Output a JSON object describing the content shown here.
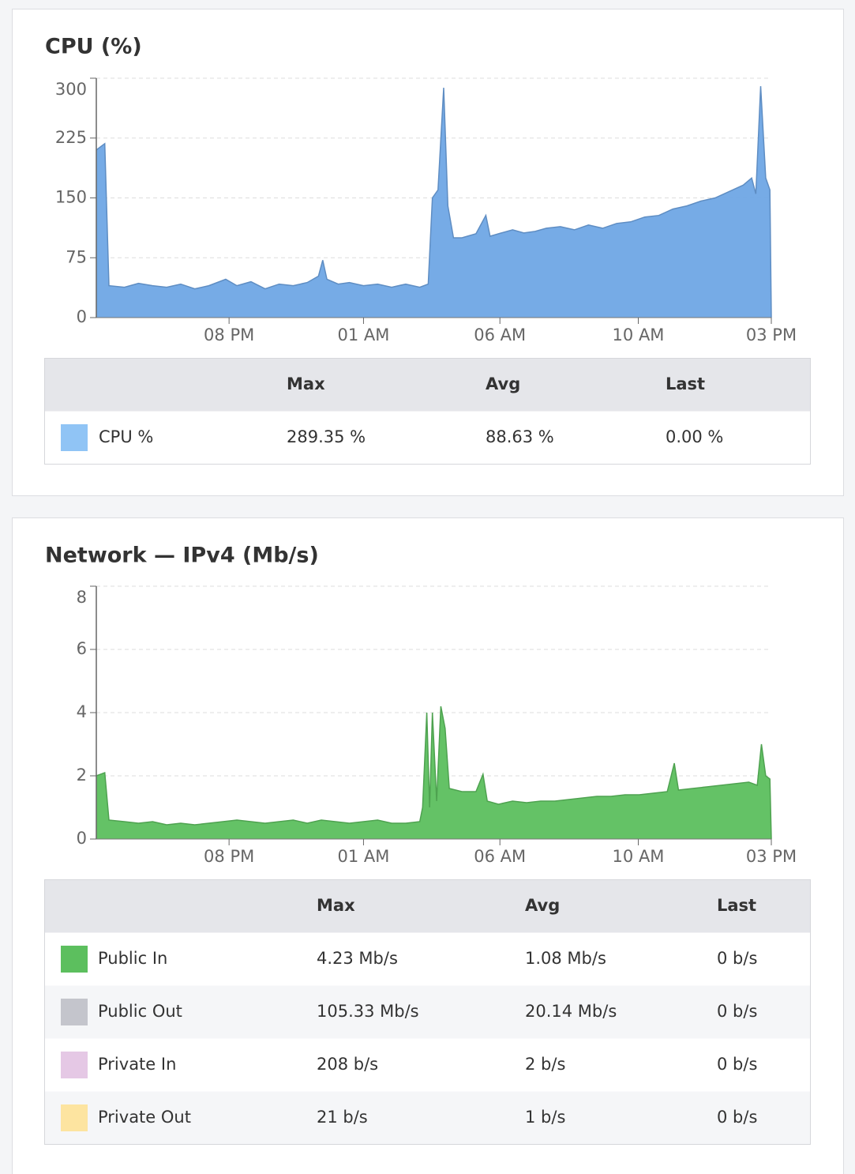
{
  "chart_data": [
    {
      "type": "area",
      "title": "CPU (%)",
      "x": [
        0,
        0.3,
        0.45,
        1,
        1.5,
        2,
        2.5,
        3,
        3.5,
        4,
        4.6,
        5,
        5.5,
        6,
        6.5,
        7,
        7.5,
        7.9,
        8.05,
        8.2,
        8.6,
        9,
        9.5,
        10,
        10.5,
        11,
        11.5,
        11.8,
        11.95,
        12.15,
        12.35,
        12.5,
        12.7,
        13,
        13.5,
        13.85,
        14,
        14.4,
        14.8,
        15.2,
        15.6,
        16,
        16.5,
        17,
        17.5,
        18,
        18.5,
        19,
        19.5,
        20,
        20.5,
        21,
        21.5,
        22,
        22.5,
        23,
        23.3,
        23.45,
        23.62,
        23.8,
        23.95,
        24
      ],
      "series": [
        {
          "color": "#6fa6e5",
          "values": [
            210,
            218,
            40,
            38,
            43,
            40,
            38,
            42,
            36,
            40,
            48,
            40,
            45,
            36,
            42,
            40,
            44,
            52,
            72,
            48,
            42,
            44,
            40,
            42,
            38,
            42,
            38,
            42,
            150,
            160,
            288,
            140,
            100,
            100,
            105,
            128,
            102,
            106,
            110,
            106,
            108,
            112,
            114,
            110,
            116,
            112,
            118,
            120,
            126,
            128,
            136,
            140,
            146,
            150,
            158,
            166,
            175,
            155,
            290,
            175,
            160,
            0
          ]
        }
      ],
      "xlim": [
        0,
        24
      ],
      "xticks": [
        {
          "value": 4.72,
          "label": "08 PM"
        },
        {
          "value": 9.5,
          "label": "01 AM"
        },
        {
          "value": 14.35,
          "label": "06 AM"
        },
        {
          "value": 19.27,
          "label": "10 AM"
        },
        {
          "value": 24,
          "label": "03 PM"
        }
      ],
      "ylim": [
        0,
        300
      ],
      "yticks": [
        0,
        75,
        150,
        225,
        300
      ],
      "grid": true
    },
    {
      "type": "area",
      "title": "Network — IPv4 (Mb/s)",
      "x": [
        0,
        0.3,
        0.45,
        1,
        1.5,
        2,
        2.5,
        3,
        3.5,
        4,
        4.5,
        5,
        5.5,
        6,
        6.5,
        7,
        7.5,
        8,
        8.5,
        9,
        9.5,
        10,
        10.5,
        11,
        11.5,
        11.6,
        11.75,
        11.85,
        11.95,
        12.1,
        12.25,
        12.4,
        12.55,
        13,
        13.5,
        13.75,
        13.9,
        14.3,
        14.8,
        15.3,
        15.8,
        16.3,
        16.8,
        17.3,
        17.8,
        18.3,
        18.8,
        19.3,
        19.8,
        20.3,
        20.55,
        20.7,
        21.2,
        21.7,
        22.2,
        22.7,
        23.2,
        23.5,
        23.65,
        23.8,
        23.95,
        24
      ],
      "series": [
        {
          "color": "#5cbf5e",
          "values": [
            2.0,
            2.1,
            0.6,
            0.55,
            0.5,
            0.55,
            0.45,
            0.5,
            0.45,
            0.5,
            0.55,
            0.6,
            0.55,
            0.5,
            0.55,
            0.6,
            0.5,
            0.6,
            0.55,
            0.5,
            0.55,
            0.6,
            0.5,
            0.5,
            0.55,
            1.0,
            4.0,
            1.0,
            4.0,
            1.2,
            4.2,
            3.5,
            1.6,
            1.5,
            1.5,
            2.05,
            1.2,
            1.1,
            1.2,
            1.15,
            1.2,
            1.2,
            1.25,
            1.3,
            1.35,
            1.35,
            1.4,
            1.4,
            1.45,
            1.5,
            2.4,
            1.55,
            1.6,
            1.65,
            1.7,
            1.75,
            1.8,
            1.7,
            3.0,
            2.0,
            1.9,
            0
          ]
        }
      ],
      "xlim": [
        0,
        24
      ],
      "xticks": [
        {
          "value": 4.72,
          "label": "08 PM"
        },
        {
          "value": 9.5,
          "label": "01 AM"
        },
        {
          "value": 14.35,
          "label": "06 AM"
        },
        {
          "value": 19.27,
          "label": "10 AM"
        },
        {
          "value": 24,
          "label": "03 PM"
        }
      ],
      "ylim": [
        0,
        8
      ],
      "yticks": [
        0,
        2,
        4,
        6,
        8
      ],
      "grid": true
    }
  ],
  "tables": [
    {
      "columns": [
        "Max",
        "Avg",
        "Last"
      ],
      "rows": [
        {
          "name": "CPU %",
          "color": "#90c4f5",
          "cells": [
            "289.35 %",
            "88.63 %",
            "0.00 %"
          ]
        }
      ]
    },
    {
      "columns": [
        "Max",
        "Avg",
        "Last"
      ],
      "rows": [
        {
          "name": "Public In",
          "color": "#5cbf5e",
          "cells": [
            "4.23 Mb/s",
            "1.08 Mb/s",
            "0 b/s"
          ]
        },
        {
          "name": "Public Out",
          "color": "#c4c5cc",
          "cells": [
            "105.33 Mb/s",
            "20.14 Mb/s",
            "0 b/s"
          ]
        },
        {
          "name": "Private In",
          "color": "#e5c8e5",
          "cells": [
            "208 b/s",
            "2 b/s",
            "0 b/s"
          ]
        },
        {
          "name": "Private Out",
          "color": "#fde4a0",
          "cells": [
            "21 b/s",
            "1 b/s",
            "0 b/s"
          ]
        }
      ]
    }
  ]
}
